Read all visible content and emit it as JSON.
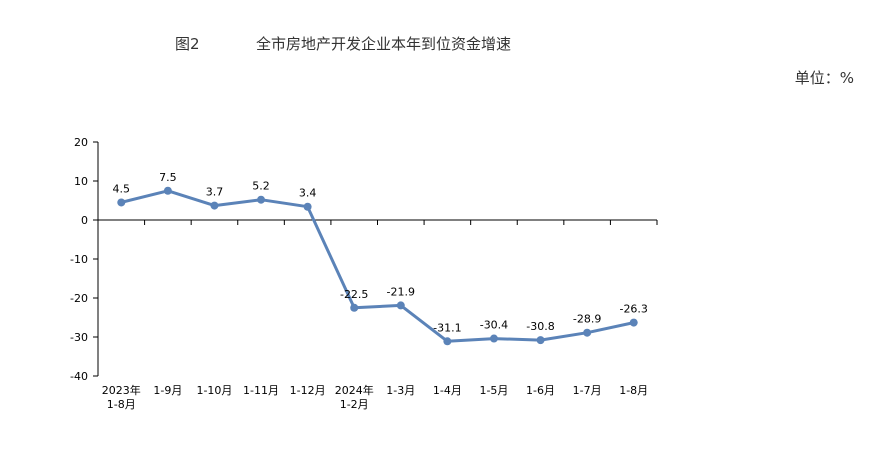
{
  "header": {
    "figure_label": "图2",
    "title": "全市房地产开发企业本年到位资金增速",
    "unit": "单位：%"
  },
  "chart_data": {
    "type": "line",
    "title": "全市房地产开发企业本年到位资金增速",
    "categories": [
      [
        "2023年",
        "1-8月"
      ],
      [
        "1-9月"
      ],
      [
        "1-10月"
      ],
      [
        "1-11月"
      ],
      [
        "1-12月"
      ],
      [
        "2024年",
        "1-2月"
      ],
      [
        "1-3月"
      ],
      [
        "1-4月"
      ],
      [
        "1-5月"
      ],
      [
        "1-6月"
      ],
      [
        "1-7月"
      ],
      [
        "1-8月"
      ]
    ],
    "series": [
      {
        "values": [
          4.5,
          7.5,
          3.7,
          5.2,
          3.4,
          -22.5,
          -21.9,
          -31.1,
          -30.4,
          -30.8,
          -28.9,
          -26.3
        ],
        "labels": [
          "4.5",
          "7.5",
          "3.7",
          "5.2",
          "3.4",
          "-22.5",
          "-21.9",
          "-31.1",
          "-30.4",
          "-30.8",
          "-28.9",
          "-26.3"
        ]
      }
    ],
    "ylim": [
      -40,
      20
    ],
    "yticks": [
      20,
      10,
      0,
      -10,
      -20,
      -30,
      -40
    ],
    "grid": false,
    "line_color": "#5b83b8"
  }
}
